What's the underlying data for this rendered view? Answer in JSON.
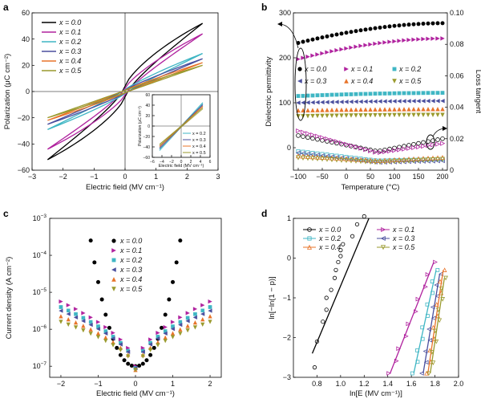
{
  "figure": {
    "legend_labels": [
      "x = 0.0",
      "x = 0.1",
      "x = 0.2",
      "x = 0.3",
      "x = 0.4",
      "x = 0.5"
    ],
    "legend_labels_d": [
      "x = 0.0",
      "x = 0.1",
      "x = 0.2",
      "x = 0.3",
      "x = 0.4",
      "x = 0.5"
    ]
  },
  "colors": {
    "x00": "#000000",
    "x01": "#b0229e",
    "x02": "#3fb6c4",
    "x03": "#4a4f9e",
    "x04": "#e8742a",
    "x05": "#9a9a2e"
  },
  "chart_data": [
    {
      "panel": "a",
      "type": "line",
      "xlabel": "Electric field (MV cm⁻¹)",
      "ylabel": "Polarization (μC cm⁻²)",
      "xlim": [
        -3,
        3
      ],
      "ylim": [
        -60,
        60
      ],
      "xticks": [
        -3,
        -2,
        -1,
        0,
        1,
        2,
        3
      ],
      "yticks": [
        -60,
        -40,
        -20,
        0,
        20,
        40,
        60
      ],
      "legend": "top-left",
      "series": [
        {
          "name": "x = 0.0",
          "emax": 2.5,
          "pmax": 52,
          "shape": 0.75,
          "offset": 4
        },
        {
          "name": "x = 0.1",
          "emax": 2.5,
          "pmax": 44,
          "shape": 0.8,
          "offset": 2.5
        },
        {
          "name": "x = 0.2",
          "emax": 2.5,
          "pmax": 29,
          "shape": 0.9,
          "offset": 1.5
        },
        {
          "name": "x = 0.3",
          "emax": 2.5,
          "pmax": 25,
          "shape": 0.92,
          "offset": 1.2
        },
        {
          "name": "x = 0.4",
          "emax": 2.5,
          "pmax": 22,
          "shape": 0.95,
          "offset": 1.0
        },
        {
          "name": "x = 0.5",
          "emax": 2.5,
          "pmax": 20,
          "shape": 0.97,
          "offset": 0.8
        }
      ],
      "inset": {
        "xlabel": "Electric field (MV cm⁻¹)",
        "ylabel": "Polarization (μC cm⁻²)",
        "xlim": [
          -6,
          6
        ],
        "ylim": [
          -60,
          60
        ],
        "xticks": [
          -6,
          -4,
          -2,
          0,
          2,
          4,
          6
        ],
        "yticks": [
          -60,
          -40,
          -20,
          0,
          20,
          40,
          60
        ],
        "legend": "bottom-right",
        "series": [
          {
            "name": "x = 0.2",
            "emax": 4.5,
            "pmax": 45
          },
          {
            "name": "x = 0.3",
            "emax": 4.5,
            "pmax": 41
          },
          {
            "name": "x = 0.4",
            "emax": 4.5,
            "pmax": 38
          },
          {
            "name": "x = 0.5",
            "emax": 4.5,
            "pmax": 35
          }
        ]
      }
    },
    {
      "panel": "b",
      "type": "scatter",
      "xlabel": "Temperature (°C)",
      "ylabel": "Dielectric permittivity",
      "y2label": "Loss tangent",
      "xlim": [
        -110,
        210
      ],
      "ylim": [
        -50,
        300
      ],
      "y2lim": [
        0,
        0.1
      ],
      "xticks": [
        -100,
        -50,
        0,
        50,
        100,
        150,
        200
      ],
      "yticks": [
        0,
        100,
        200,
        300
      ],
      "y2ticks": [
        0,
        0.02,
        0.04,
        0.06,
        0.08,
        0.1
      ],
      "y2ticklabels": [
        "0",
        "0.02",
        "0.04",
        "0.06",
        "0.08",
        "0.10"
      ],
      "x": [
        -100,
        -90,
        -80,
        -70,
        -60,
        -50,
        -40,
        -30,
        -20,
        -10,
        0,
        10,
        20,
        30,
        40,
        50,
        60,
        70,
        80,
        90,
        100,
        110,
        120,
        130,
        140,
        150,
        160,
        170,
        180,
        190,
        200
      ],
      "legend": "center-right",
      "permittivity": [
        {
          "name": "x = 0.0",
          "start": 233,
          "end": 277
        },
        {
          "name": "x = 0.1",
          "start": 197,
          "end": 243
        },
        {
          "name": "x = 0.2",
          "start": 115,
          "end": 122
        },
        {
          "name": "x = 0.3",
          "start": 100,
          "end": 104
        },
        {
          "name": "x = 0.4",
          "start": 83,
          "end": 86
        },
        {
          "name": "x = 0.5",
          "start": 70,
          "end": 73
        }
      ],
      "loss": [
        {
          "name": "x = 0.0",
          "start": 0.022,
          "mid": 0.012,
          "end": 0.02
        },
        {
          "name": "x = 0.1",
          "start": 0.025,
          "mid": 0.011,
          "end": 0.017
        },
        {
          "name": "x = 0.2",
          "start": 0.012,
          "mid": 0.006,
          "end": 0.007
        },
        {
          "name": "x = 0.3",
          "start": 0.011,
          "mid": 0.005,
          "end": 0.006
        },
        {
          "name": "x = 0.4",
          "start": 0.009,
          "mid": 0.006,
          "end": 0.008
        },
        {
          "name": "x = 0.5",
          "start": 0.008,
          "mid": 0.005,
          "end": 0.007
        }
      ]
    },
    {
      "panel": "c",
      "type": "scatter",
      "xlabel": "Electric field (MV cm⁻¹)",
      "ylabel": "Current density (A cm⁻²)",
      "xlim": [
        -2.3,
        2.3
      ],
      "ylim_log10": [
        -7.3,
        -3
      ],
      "xticks": [
        -2,
        -1,
        0,
        1,
        2
      ],
      "yticks_log10": [
        -7,
        -6,
        -5,
        -4,
        -3
      ],
      "legend": "top-center",
      "series": [
        {
          "name": "x = 0.0",
          "emax": 1.2,
          "jmin_log": -7.0,
          "jmax_log": -3.6
        },
        {
          "name": "x = 0.1",
          "emax": 2.0,
          "jmin_log": -7.0,
          "jmax_log": -5.25
        },
        {
          "name": "x = 0.2",
          "emax": 2.0,
          "jmin_log": -7.05,
          "jmax_log": -5.4
        },
        {
          "name": "x = 0.3",
          "emax": 2.0,
          "jmin_log": -7.05,
          "jmax_log": -5.5
        },
        {
          "name": "x = 0.4",
          "emax": 2.0,
          "jmin_log": -7.1,
          "jmax_log": -5.65
        },
        {
          "name": "x = 0.5",
          "emax": 2.0,
          "jmin_log": -7.1,
          "jmax_log": -5.8
        }
      ]
    },
    {
      "panel": "d",
      "type": "scatter",
      "xlabel": "ln[E (MV cm⁻¹)]",
      "ylabel": "ln[−ln(1 − p)]",
      "xlim": [
        0.6,
        2.0
      ],
      "ylim": [
        -3,
        1
      ],
      "xticks": [
        0.8,
        1.0,
        1.2,
        1.4,
        1.6,
        1.8,
        2.0
      ],
      "yticks": [
        -3,
        -2,
        -1,
        0,
        1
      ],
      "legend": "top-right",
      "fits": [
        {
          "name": "x = 0.0",
          "x0": 0.76,
          "x1": 1.24,
          "y0": -2.4,
          "y1": 1.0
        },
        {
          "name": "x = 0.1",
          "x0": 1.42,
          "x1": 1.79,
          "y0": -2.9,
          "y1": -0.1
        },
        {
          "name": "x = 0.2",
          "x0": 1.62,
          "x1": 1.81,
          "y0": -2.9,
          "y1": -0.3
        },
        {
          "name": "x = 0.3",
          "x0": 1.7,
          "x1": 1.84,
          "y0": -2.9,
          "y1": -0.4
        },
        {
          "name": "x = 0.4",
          "x0": 1.74,
          "x1": 1.87,
          "y0": -2.9,
          "y1": -0.3
        },
        {
          "name": "x = 0.5",
          "x0": 1.76,
          "x1": 1.88,
          "y0": -2.9,
          "y1": -0.5
        }
      ],
      "points_x00": [
        [
          0.78,
          -2.75
        ],
        [
          0.8,
          -2.1
        ],
        [
          0.85,
          -1.6
        ],
        [
          0.88,
          -1.3
        ],
        [
          0.88,
          -1.0
        ],
        [
          0.92,
          -0.8
        ],
        [
          0.95,
          -0.5
        ],
        [
          0.96,
          -0.3
        ],
        [
          0.98,
          -0.1
        ],
        [
          1.0,
          0.05
        ],
        [
          1.0,
          0.2
        ],
        [
          1.02,
          0.35
        ],
        [
          1.1,
          0.55
        ],
        [
          1.14,
          0.85
        ],
        [
          1.2,
          1.05
        ]
      ]
    }
  ]
}
